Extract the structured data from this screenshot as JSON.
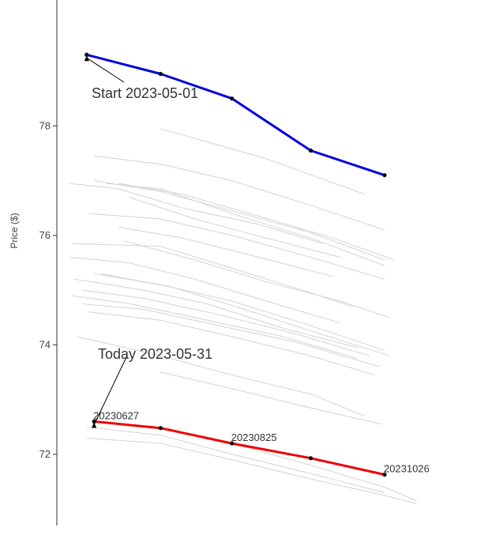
{
  "chart_data": {
    "type": "line",
    "ylabel": "Price ($)",
    "ylim": [
      70.7,
      80.3
    ],
    "yticks": [
      72,
      74,
      76,
      78
    ],
    "x_range": [
      "2023-06-20",
      "2023-11-20"
    ],
    "grid": false,
    "legend": "none",
    "colors": {
      "start": "#0000dd",
      "today": "#ee0000",
      "history": "#d3d3d3",
      "marker": "#000000"
    },
    "annotations": [
      {
        "text": "Start 2023-05-01",
        "at": {
          "x": "2023-06-27",
          "y": 79.3
        }
      },
      {
        "text": "Today 2023-05-31",
        "at": {
          "x": "2023-06-30",
          "y": 72.6
        }
      }
    ],
    "series": [
      {
        "role": "start",
        "x": [
          "2023-06-27",
          "2023-07-27",
          "2023-08-25",
          "2023-09-26",
          "2023-10-26"
        ],
        "y": [
          79.3,
          78.95,
          78.5,
          77.55,
          77.1
        ]
      },
      {
        "role": "today",
        "x": [
          "2023-06-30",
          "2023-07-27",
          "2023-08-25",
          "2023-09-26",
          "2023-10-26"
        ],
        "y": [
          72.6,
          72.48,
          72.2,
          71.93,
          71.63
        ],
        "point_labels": [
          "20230627",
          "",
          "20230825",
          "",
          "20231026"
        ]
      }
    ],
    "history": [
      {
        "x": [
          "2023-07-27",
          "2023-09-08",
          "2023-10-18"
        ],
        "y": [
          77.95,
          77.4,
          76.75
        ]
      },
      {
        "x": [
          "2023-06-30",
          "2023-07-27",
          "2023-08-25",
          "2023-09-26",
          "2023-10-26"
        ],
        "y": [
          77.45,
          77.3,
          77.0,
          76.55,
          76.1
        ]
      },
      {
        "x": [
          "2023-06-30",
          "2023-07-27",
          "2023-08-25",
          "2023-09-26",
          "2023-10-26"
        ],
        "y": [
          77.0,
          76.8,
          76.45,
          76.05,
          75.55
        ]
      },
      {
        "x": [
          "2023-06-20",
          "2023-07-10",
          "2023-08-05",
          "2023-09-05",
          "2023-10-01"
        ],
        "y": [
          76.95,
          76.85,
          76.5,
          76.2,
          75.85
        ]
      },
      {
        "x": [
          "2023-07-10",
          "2023-08-05",
          "2023-09-05",
          "2023-10-05",
          "2023-10-30"
        ],
        "y": [
          76.95,
          76.75,
          76.35,
          75.95,
          75.55
        ]
      },
      {
        "x": [
          "2023-07-05",
          "2023-07-27",
          "2023-08-25",
          "2023-09-26",
          "2023-10-26"
        ],
        "y": [
          76.95,
          76.85,
          76.4,
          75.95,
          75.45
        ]
      },
      {
        "x": [
          "2023-07-14",
          "2023-08-10",
          "2023-09-08",
          "2023-10-08"
        ],
        "y": [
          76.7,
          76.3,
          75.95,
          75.6
        ]
      },
      {
        "x": [
          "2023-06-28",
          "2023-07-27",
          "2023-08-25",
          "2023-09-26",
          "2023-10-26"
        ],
        "y": [
          76.4,
          76.3,
          76.0,
          75.6,
          75.2
        ]
      },
      {
        "x": [
          "2023-07-10",
          "2023-08-05",
          "2023-09-05",
          "2023-10-05"
        ],
        "y": [
          76.15,
          75.95,
          75.6,
          75.25
        ]
      },
      {
        "x": [
          "2023-06-21",
          "2023-07-27",
          "2023-08-25",
          "2023-09-26",
          "2023-10-13"
        ],
        "y": [
          75.85,
          75.8,
          75.4,
          74.95,
          74.7
        ]
      },
      {
        "x": [
          "2023-07-12",
          "2023-08-10",
          "2023-09-08",
          "2023-10-08",
          "2023-10-28"
        ],
        "y": [
          75.9,
          75.55,
          75.15,
          74.8,
          74.5
        ]
      },
      {
        "x": [
          "2023-06-20",
          "2023-07-14",
          "2023-08-10",
          "2023-09-08",
          "2023-10-08"
        ],
        "y": [
          75.6,
          75.5,
          75.2,
          74.8,
          74.4
        ]
      },
      {
        "x": [
          "2023-06-22",
          "2023-07-20",
          "2023-08-15",
          "2023-09-15",
          "2023-10-15"
        ],
        "y": [
          75.2,
          75.0,
          74.75,
          74.3,
          73.95
        ]
      },
      {
        "x": [
          "2023-06-30",
          "2023-07-27",
          "2023-08-25",
          "2023-09-26",
          "2023-10-26"
        ],
        "y": [
          75.3,
          75.1,
          74.8,
          74.35,
          73.9
        ]
      },
      {
        "x": [
          "2023-07-03",
          "2023-08-01",
          "2023-08-30",
          "2023-09-30",
          "2023-10-28"
        ],
        "y": [
          75.3,
          75.05,
          74.65,
          74.2,
          73.8
        ]
      },
      {
        "x": [
          "2023-06-25",
          "2023-07-20",
          "2023-08-20",
          "2023-09-20",
          "2023-10-20"
        ],
        "y": [
          75.0,
          74.85,
          74.55,
          74.2,
          73.8
        ]
      },
      {
        "x": [
          "2023-06-21",
          "2023-07-15",
          "2023-08-15",
          "2023-09-15",
          "2023-10-15"
        ],
        "y": [
          74.9,
          74.75,
          74.45,
          74.15,
          73.75
        ]
      },
      {
        "x": [
          "2023-06-25",
          "2023-07-20",
          "2023-08-20",
          "2023-09-20",
          "2023-10-24"
        ],
        "y": [
          74.75,
          74.65,
          74.35,
          74.05,
          73.6
        ]
      },
      {
        "x": [
          "2023-06-28",
          "2023-07-27",
          "2023-08-25",
          "2023-09-26",
          "2023-10-22"
        ],
        "y": [
          74.6,
          74.45,
          74.15,
          73.8,
          73.45
        ]
      },
      {
        "x": [
          "2023-06-23",
          "2023-07-27",
          "2023-08-25",
          "2023-09-26",
          "2023-10-18"
        ],
        "y": [
          74.15,
          73.8,
          73.45,
          73.1,
          72.7
        ]
      },
      {
        "x": [
          "2023-07-27",
          "2023-08-25",
          "2023-09-26",
          "2023-10-25"
        ],
        "y": [
          73.5,
          73.2,
          72.85,
          72.55
        ]
      },
      {
        "x": [
          "2023-06-27",
          "2023-07-27",
          "2023-08-25",
          "2023-09-26",
          "2023-10-26"
        ],
        "y": [
          72.5,
          72.35,
          72.0,
          71.65,
          71.3
        ]
      },
      {
        "x": [
          "2023-06-27",
          "2023-07-27",
          "2023-08-25",
          "2023-09-26",
          "2023-10-26",
          "2023-11-08"
        ],
        "y": [
          72.3,
          72.2,
          71.9,
          71.55,
          71.25,
          71.1
        ]
      },
      {
        "x": [
          "2023-07-27",
          "2023-08-25",
          "2023-09-26",
          "2023-10-26",
          "2023-11-08"
        ],
        "y": [
          72.5,
          72.2,
          71.8,
          71.4,
          71.15
        ]
      }
    ]
  }
}
